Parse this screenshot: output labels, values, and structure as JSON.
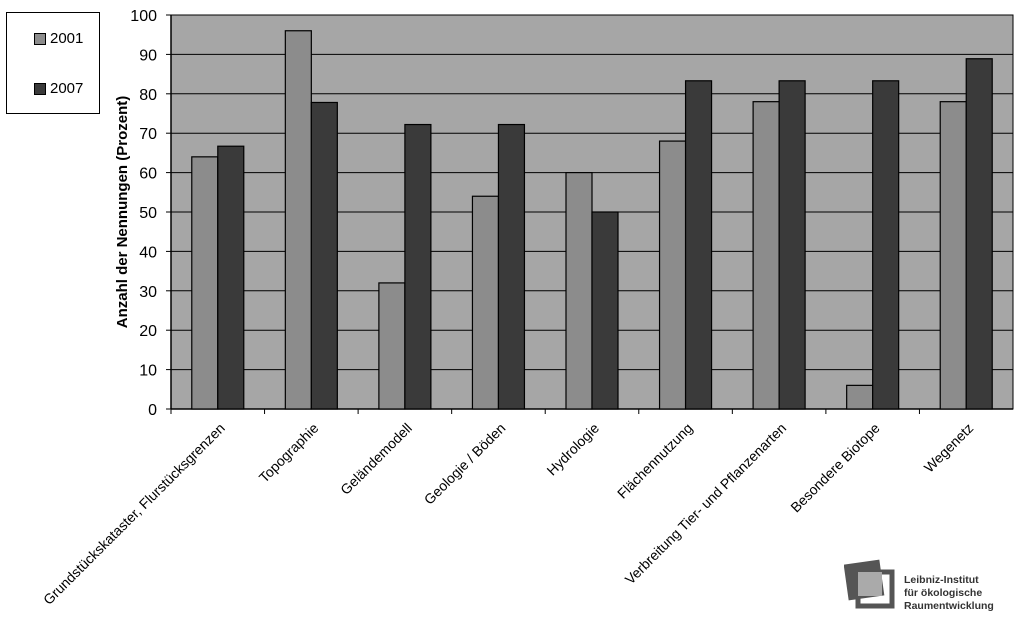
{
  "chart_data": {
    "type": "bar",
    "categories": [
      "Grundstückskataster, Flurstücksgrenzen",
      "Topographie",
      "Geländemodell",
      "Geologie / Böden",
      "Hydrologie",
      "Flächennutzung",
      "Verbreitung Tier- und Pflanzenarten",
      "Besondere Biotope",
      "Wegenetz"
    ],
    "series": [
      {
        "name": "2001",
        "color": "#8c8c8c",
        "values": [
          64,
          96,
          32,
          54,
          60,
          68,
          78,
          6,
          78
        ]
      },
      {
        "name": "2007",
        "color": "#3a3a3a",
        "values": [
          66.7,
          77.8,
          72.2,
          72.2,
          50,
          83.3,
          83.3,
          83.3,
          88.9
        ]
      }
    ],
    "xlabel": "",
    "ylabel": "Anzahl der Nennungen (Prozent)",
    "ylim": [
      0,
      100
    ],
    "yticks": [
      0,
      10,
      20,
      30,
      40,
      50,
      60,
      70,
      80,
      90,
      100
    ],
    "grid": true,
    "plot_background": "#a6a6a6",
    "legend_position": "top-left"
  },
  "logo": {
    "lines": [
      "Leibniz-Institut",
      "für ökologische",
      "Raumentwicklung"
    ]
  }
}
